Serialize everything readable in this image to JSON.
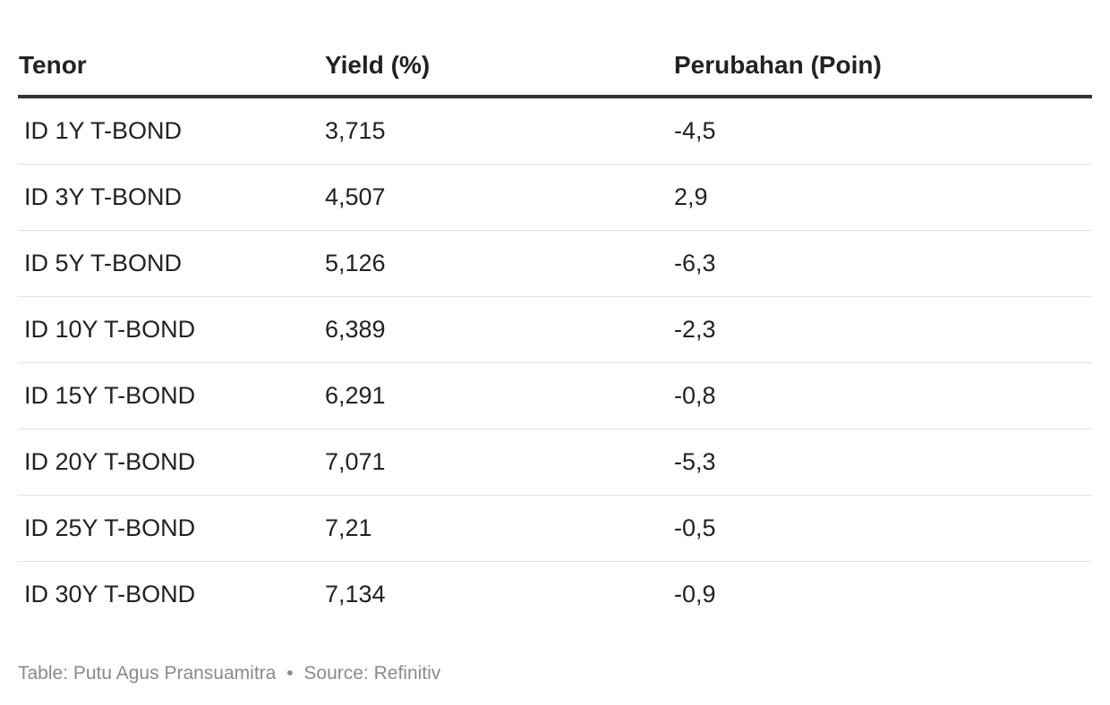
{
  "chart_data": {
    "type": "table",
    "columns": [
      "Tenor",
      "Yield (%)",
      "Perubahan (Poin)"
    ],
    "rows": [
      [
        "ID 1Y T-BOND",
        "3,715",
        "-4,5"
      ],
      [
        "ID 3Y T-BOND",
        "4,507",
        "2,9"
      ],
      [
        "ID 5Y T-BOND",
        "5,126",
        "-6,3"
      ],
      [
        "ID 10Y T-BOND",
        "6,389",
        "-2,3"
      ],
      [
        "ID 15Y T-BOND",
        "6,291",
        "-0,8"
      ],
      [
        "ID 20Y T-BOND",
        "7,071",
        "-5,3"
      ],
      [
        "ID 25Y T-BOND",
        "7,21",
        "-0,5"
      ],
      [
        "ID 30Y T-BOND",
        "7,134",
        "-0,9"
      ]
    ]
  },
  "footer": {
    "credit": "Table: Putu Agus Pransuamitra",
    "separator": "•",
    "source": "Source: Refinitiv"
  }
}
